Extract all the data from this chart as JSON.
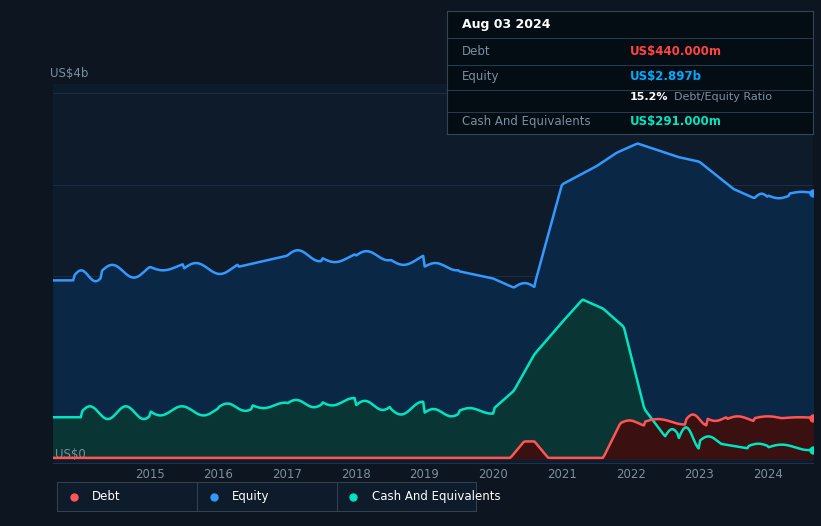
{
  "bg_color": "#0d1520",
  "plot_bg_color": "#0d1b2a",
  "grid_color": "#1e3050",
  "title_box": {
    "date": "Aug 03 2024",
    "debt_label": "Debt",
    "debt_value": "US$440.000m",
    "equity_label": "Equity",
    "equity_value": "US$2.897b",
    "ratio_bold": "15.2%",
    "ratio_text": "Debt/Equity Ratio",
    "cash_label": "Cash And Equivalents",
    "cash_value": "US$291.000m",
    "debt_color": "#ff4444",
    "equity_color": "#00aaff",
    "cash_color": "#00e5c0",
    "label_color": "#7a8fa0",
    "bg_color": "#050d14"
  },
  "ylabel_text": "US$4b",
  "ylabel0_text": "US$0",
  "equity_color": "#3399ff",
  "equity_fill": "#0a2845",
  "cash_color": "#00e5c0",
  "cash_fill": "#0a3535",
  "debt_color": "#ff5555",
  "debt_fill": "#3a1010",
  "line_width": 1.8,
  "legend_items": [
    {
      "label": "Debt",
      "color": "#ff5555"
    },
    {
      "label": "Equity",
      "color": "#3399ff"
    },
    {
      "label": "Cash And Equivalents",
      "color": "#00e5c0"
    }
  ]
}
